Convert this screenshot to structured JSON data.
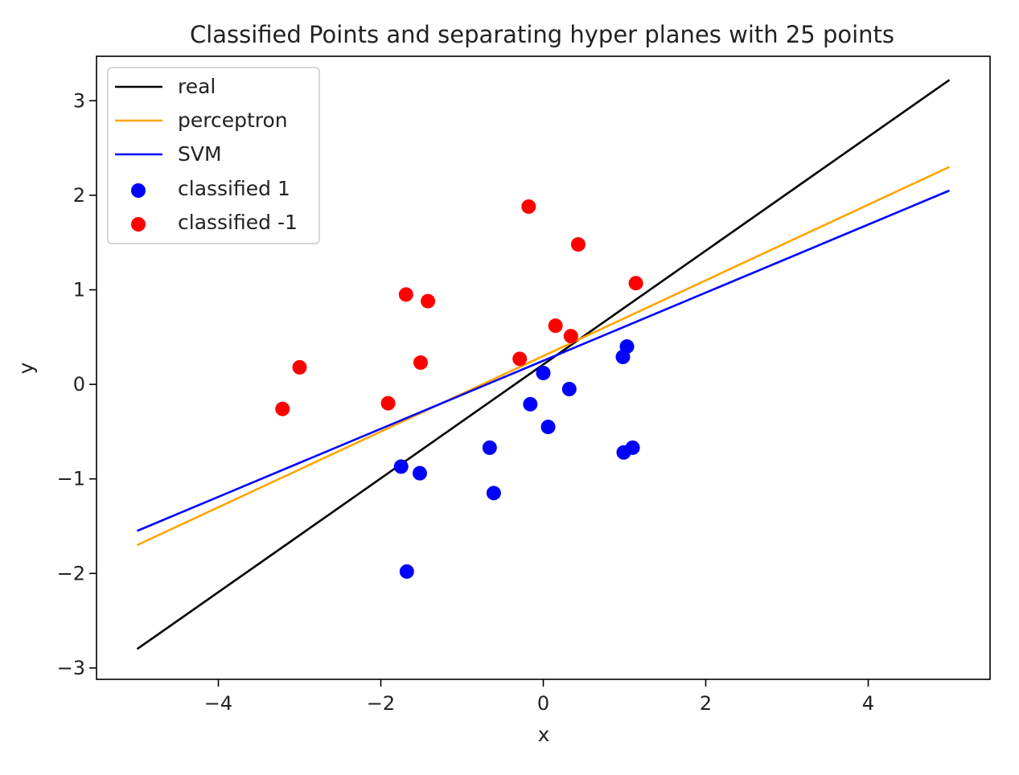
{
  "chart_data": {
    "type": "scatter",
    "title": "Classified Points and separating hyper planes with 25 points",
    "xlabel": "x",
    "ylabel": "y",
    "xlim": [
      -5.5,
      5.5
    ],
    "ylim": [
      -3.12,
      3.47
    ],
    "xticks": [
      -4,
      -2,
      0,
      2,
      4
    ],
    "xtick_labels": [
      "−4",
      "−2",
      "0",
      "2",
      "4"
    ],
    "yticks": [
      -3,
      -2,
      -1,
      0,
      1,
      2,
      3
    ],
    "ytick_labels": [
      "−3",
      "−2",
      "−1",
      "0",
      "1",
      "2",
      "3"
    ],
    "grid": false,
    "legend_position": "top-left",
    "lines": [
      {
        "name": "real",
        "color": "#000000",
        "x": [
          -5,
          5
        ],
        "y": [
          -2.8,
          3.22
        ]
      },
      {
        "name": "perceptron",
        "color": "#ffa500",
        "x": [
          -5,
          5
        ],
        "y": [
          -1.7,
          2.3
        ]
      },
      {
        "name": "SVM",
        "color": "#0000ff",
        "x": [
          -5,
          5
        ],
        "y": [
          -1.55,
          2.05
        ]
      }
    ],
    "scatter_series": [
      {
        "name": "classified 1",
        "color": "#0000ff",
        "points": [
          [
            -1.75,
            -0.87
          ],
          [
            -1.52,
            -0.94
          ],
          [
            -1.68,
            -1.98
          ],
          [
            -0.66,
            -0.67
          ],
          [
            -0.61,
            -1.15
          ],
          [
            -0.16,
            -0.21
          ],
          [
            0.0,
            0.12
          ],
          [
            0.06,
            -0.45
          ],
          [
            0.32,
            -0.05
          ],
          [
            0.98,
            0.29
          ],
          [
            1.03,
            0.4
          ],
          [
            0.99,
            -0.72
          ],
          [
            1.1,
            -0.67
          ]
        ]
      },
      {
        "name": "classified -1",
        "color": "#ff0000",
        "points": [
          [
            -3.21,
            -0.26
          ],
          [
            -3.0,
            0.18
          ],
          [
            -1.91,
            -0.2
          ],
          [
            -1.69,
            0.95
          ],
          [
            -1.42,
            0.88
          ],
          [
            -1.51,
            0.23
          ],
          [
            -0.29,
            0.27
          ],
          [
            -0.18,
            1.88
          ],
          [
            0.15,
            0.62
          ],
          [
            0.34,
            0.51
          ],
          [
            0.43,
            1.48
          ],
          [
            1.14,
            1.07
          ]
        ]
      }
    ]
  }
}
